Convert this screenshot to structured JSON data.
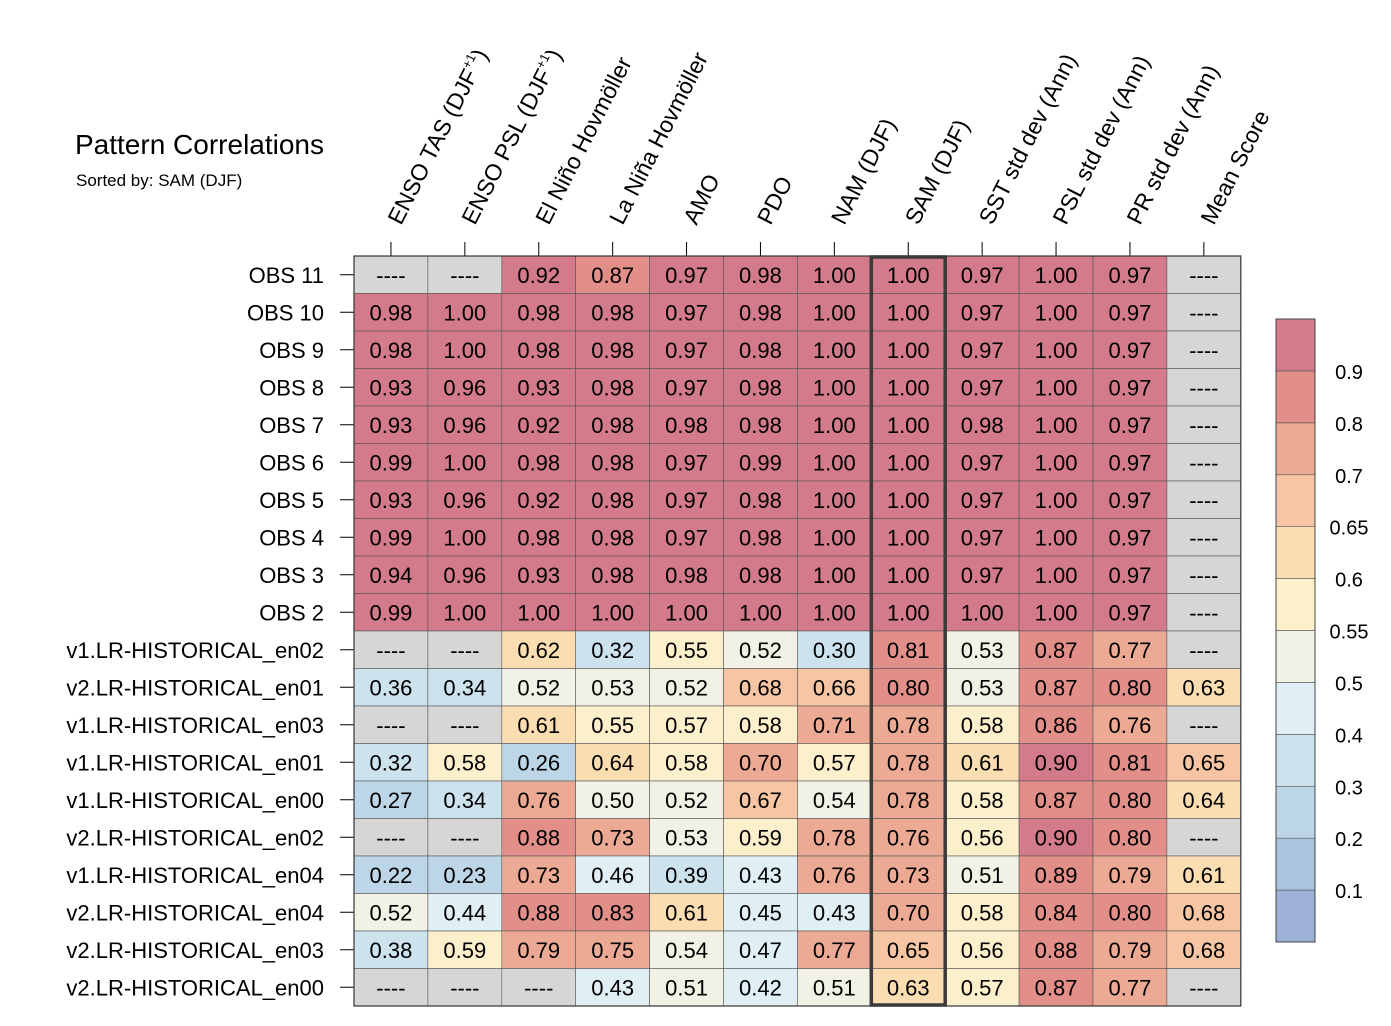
{
  "chart_data": {
    "type": "heatmap",
    "title": "Pattern Correlations",
    "subtitle": "Sorted by: SAM (DJF)",
    "sorted_by_column": 7,
    "columns": [
      {
        "label": "ENSO TAS (DJF",
        "sup": "+1",
        "close": ")"
      },
      {
        "label": "ENSO PSL (DJF",
        "sup": "+1",
        "close": ")"
      },
      {
        "label": "El Niño Hovmöller"
      },
      {
        "label": "La Niña Hovmöller"
      },
      {
        "label": "AMO"
      },
      {
        "label": "PDO"
      },
      {
        "label": "NAM (DJF)"
      },
      {
        "label": "SAM (DJF)"
      },
      {
        "label": "SST std dev (Ann)"
      },
      {
        "label": "PSL std dev (Ann)"
      },
      {
        "label": "PR std dev (Ann)"
      },
      {
        "label": "Mean Score"
      }
    ],
    "rows": [
      "OBS 11",
      "OBS 10",
      "OBS 9",
      "OBS 8",
      "OBS 7",
      "OBS 6",
      "OBS 5",
      "OBS 4",
      "OBS 3",
      "OBS 2",
      "v1.LR-HISTORICAL_en02",
      "v2.LR-HISTORICAL_en01",
      "v1.LR-HISTORICAL_en03",
      "v1.LR-HISTORICAL_en01",
      "v1.LR-HISTORICAL_en00",
      "v2.LR-HISTORICAL_en02",
      "v1.LR-HISTORICAL_en04",
      "v2.LR-HISTORICAL_en04",
      "v2.LR-HISTORICAL_en03",
      "v2.LR-HISTORICAL_en00"
    ],
    "missing_label": "----",
    "values": [
      [
        null,
        null,
        0.92,
        0.87,
        0.97,
        0.98,
        1.0,
        1.0,
        0.97,
        1.0,
        0.97,
        null
      ],
      [
        0.98,
        1.0,
        0.98,
        0.98,
        0.97,
        0.98,
        1.0,
        1.0,
        0.97,
        1.0,
        0.97,
        null
      ],
      [
        0.98,
        1.0,
        0.98,
        0.98,
        0.97,
        0.98,
        1.0,
        1.0,
        0.97,
        1.0,
        0.97,
        null
      ],
      [
        0.93,
        0.96,
        0.93,
        0.98,
        0.97,
        0.98,
        1.0,
        1.0,
        0.97,
        1.0,
        0.97,
        null
      ],
      [
        0.93,
        0.96,
        0.92,
        0.98,
        0.98,
        0.98,
        1.0,
        1.0,
        0.98,
        1.0,
        0.97,
        null
      ],
      [
        0.99,
        1.0,
        0.98,
        0.98,
        0.97,
        0.99,
        1.0,
        1.0,
        0.97,
        1.0,
        0.97,
        null
      ],
      [
        0.93,
        0.96,
        0.92,
        0.98,
        0.97,
        0.98,
        1.0,
        1.0,
        0.97,
        1.0,
        0.97,
        null
      ],
      [
        0.99,
        1.0,
        0.98,
        0.98,
        0.97,
        0.98,
        1.0,
        1.0,
        0.97,
        1.0,
        0.97,
        null
      ],
      [
        0.94,
        0.96,
        0.93,
        0.98,
        0.98,
        0.98,
        1.0,
        1.0,
        0.97,
        1.0,
        0.97,
        null
      ],
      [
        0.99,
        1.0,
        1.0,
        1.0,
        1.0,
        1.0,
        1.0,
        1.0,
        1.0,
        1.0,
        0.97,
        null
      ],
      [
        null,
        null,
        0.62,
        0.32,
        0.55,
        0.52,
        0.3,
        0.81,
        0.53,
        0.87,
        0.77,
        null
      ],
      [
        0.36,
        0.34,
        0.52,
        0.53,
        0.52,
        0.68,
        0.66,
        0.8,
        0.53,
        0.87,
        0.8,
        0.63
      ],
      [
        null,
        null,
        0.61,
        0.55,
        0.57,
        0.58,
        0.71,
        0.78,
        0.58,
        0.86,
        0.76,
        null
      ],
      [
        0.32,
        0.58,
        0.26,
        0.64,
        0.58,
        0.7,
        0.57,
        0.78,
        0.61,
        0.9,
        0.81,
        0.65
      ],
      [
        0.27,
        0.34,
        0.76,
        0.5,
        0.52,
        0.67,
        0.54,
        0.78,
        0.58,
        0.87,
        0.8,
        0.64
      ],
      [
        null,
        null,
        0.88,
        0.73,
        0.53,
        0.59,
        0.78,
        0.76,
        0.56,
        0.9,
        0.8,
        null
      ],
      [
        0.22,
        0.23,
        0.73,
        0.46,
        0.39,
        0.43,
        0.76,
        0.73,
        0.51,
        0.89,
        0.79,
        0.61
      ],
      [
        0.52,
        0.44,
        0.88,
        0.83,
        0.61,
        0.45,
        0.43,
        0.7,
        0.58,
        0.84,
        0.8,
        0.68
      ],
      [
        0.38,
        0.59,
        0.79,
        0.75,
        0.54,
        0.47,
        0.77,
        0.65,
        0.56,
        0.88,
        0.79,
        0.68
      ],
      [
        null,
        null,
        null,
        0.43,
        0.51,
        0.42,
        0.51,
        0.63,
        0.57,
        0.87,
        0.77,
        null
      ]
    ],
    "colorbar": {
      "bins": [
        {
          "upper": 0.1,
          "color": "#9eb1d6"
        },
        {
          "upper": 0.2,
          "color": "#abc4de"
        },
        {
          "upper": 0.3,
          "color": "#bcd6e7"
        },
        {
          "upper": 0.4,
          "color": "#cce2ed"
        },
        {
          "upper": 0.5,
          "color": "#e0eff4"
        },
        {
          "upper": 0.55,
          "color": "#f1f1e5"
        },
        {
          "upper": 0.6,
          "color": "#fcefcc"
        },
        {
          "upper": 0.65,
          "color": "#fbddb2"
        },
        {
          "upper": 0.7,
          "color": "#f6c6a4"
        },
        {
          "upper": 0.8,
          "color": "#ecaa94"
        },
        {
          "upper": 0.9,
          "color": "#e28f8a"
        },
        {
          "upper": 1.0,
          "color": "#d37b8b"
        }
      ],
      "tick_labels": [
        "0.1",
        "0.2",
        "0.3",
        "0.4",
        "0.5",
        "0.55",
        "0.6",
        "0.65",
        "0.7",
        "0.8",
        "0.9"
      ]
    },
    "missing_color": "#d6d6d6"
  }
}
